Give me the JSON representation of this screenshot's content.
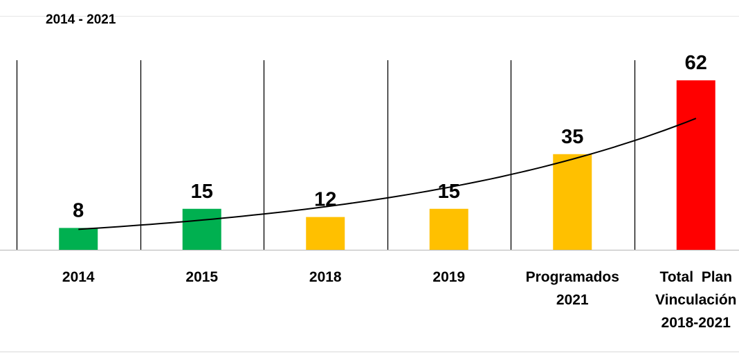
{
  "chart_data": {
    "type": "bar",
    "subtitle": "2014 - 2021",
    "categories": [
      [
        "2014"
      ],
      [
        "2015"
      ],
      [
        "2018"
      ],
      [
        "2019"
      ],
      [
        "Programados",
        "2021"
      ],
      [
        "Total  Plan",
        "Vinculación",
        "2018-2021"
      ]
    ],
    "values": [
      8,
      15,
      12,
      15,
      35,
      62
    ],
    "bar_colors": [
      "#00B050",
      "#00B050",
      "#FFC000",
      "#FFC000",
      "#FFC000",
      "#FF0000"
    ],
    "trendline": {
      "type": "exponential",
      "color": "#000000"
    },
    "ylim": [
      0,
      70
    ],
    "grid": "vertical separators between categories",
    "legend": "none"
  }
}
